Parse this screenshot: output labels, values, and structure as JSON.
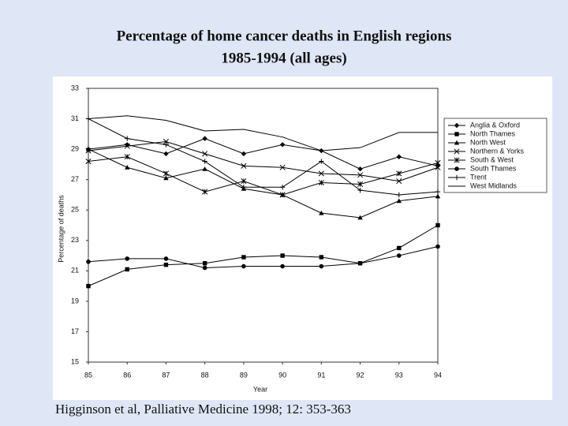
{
  "chart_data": {
    "type": "line",
    "title": "Percentage of home cancer deaths in English regions",
    "subtitle": "1985-1994 (all ages)",
    "source": "Higginson et al, Palliative Medicine 1998; 12: 353-363",
    "x_label": "Year",
    "y_label": "Percentage of deaths",
    "x": [
      85,
      86,
      87,
      88,
      89,
      90,
      91,
      92,
      93,
      94
    ],
    "xlim": [
      85,
      94
    ],
    "xticks": [
      85,
      86,
      87,
      88,
      89,
      90,
      91,
      92,
      93,
      94
    ],
    "ylim": [
      15,
      33
    ],
    "yticks": [
      15,
      17,
      19,
      21,
      23,
      25,
      27,
      29,
      31,
      33
    ],
    "grid": false,
    "legend": "upper-right",
    "series": [
      {
        "name": "Anglia & Oxford",
        "color": "#000000",
        "marker": "diamond",
        "values": [
          29,
          29.3,
          28.7,
          29.7,
          28.7,
          29.3,
          28.9,
          27.7,
          28.5,
          27.9
        ]
      },
      {
        "name": "North Thames",
        "color": "#000000",
        "marker": "square",
        "values": [
          20,
          21.1,
          21.4,
          21.5,
          21.9,
          22,
          21.9,
          21.5,
          22.5,
          24
        ]
      },
      {
        "name": "North West",
        "color": "#000000",
        "marker": "triangle",
        "values": [
          29,
          27.8,
          27.1,
          27.7,
          26.4,
          26,
          24.8,
          24.5,
          25.6,
          25.9
        ]
      },
      {
        "name": "Northern & Yorks",
        "color": "#000000",
        "marker": "x",
        "values": [
          28.9,
          29.2,
          29.5,
          28.7,
          27.9,
          27.8,
          27.4,
          27.3,
          26.9,
          27.8
        ]
      },
      {
        "name": "South & West",
        "color": "#000000",
        "marker": "star",
        "values": [
          28.2,
          28.5,
          27.4,
          26.2,
          26.9,
          26,
          26.8,
          26.7,
          27.4,
          28.1
        ]
      },
      {
        "name": "South Thames",
        "color": "#000000",
        "marker": "circle",
        "values": [
          21.6,
          21.8,
          21.8,
          21.2,
          21.3,
          21.3,
          21.3,
          21.5,
          22,
          22.6
        ]
      },
      {
        "name": "Trent",
        "color": "#000000",
        "marker": "plus",
        "values": [
          31,
          29.7,
          29.3,
          28.2,
          26.5,
          26.5,
          28.2,
          26.3,
          26,
          26.2
        ]
      },
      {
        "name": "West Midlands",
        "color": "#000000",
        "marker": "none",
        "values": [
          31,
          31.2,
          30.9,
          30.2,
          30.3,
          29.8,
          28.9,
          29.1,
          30.1,
          30.1
        ]
      }
    ]
  }
}
